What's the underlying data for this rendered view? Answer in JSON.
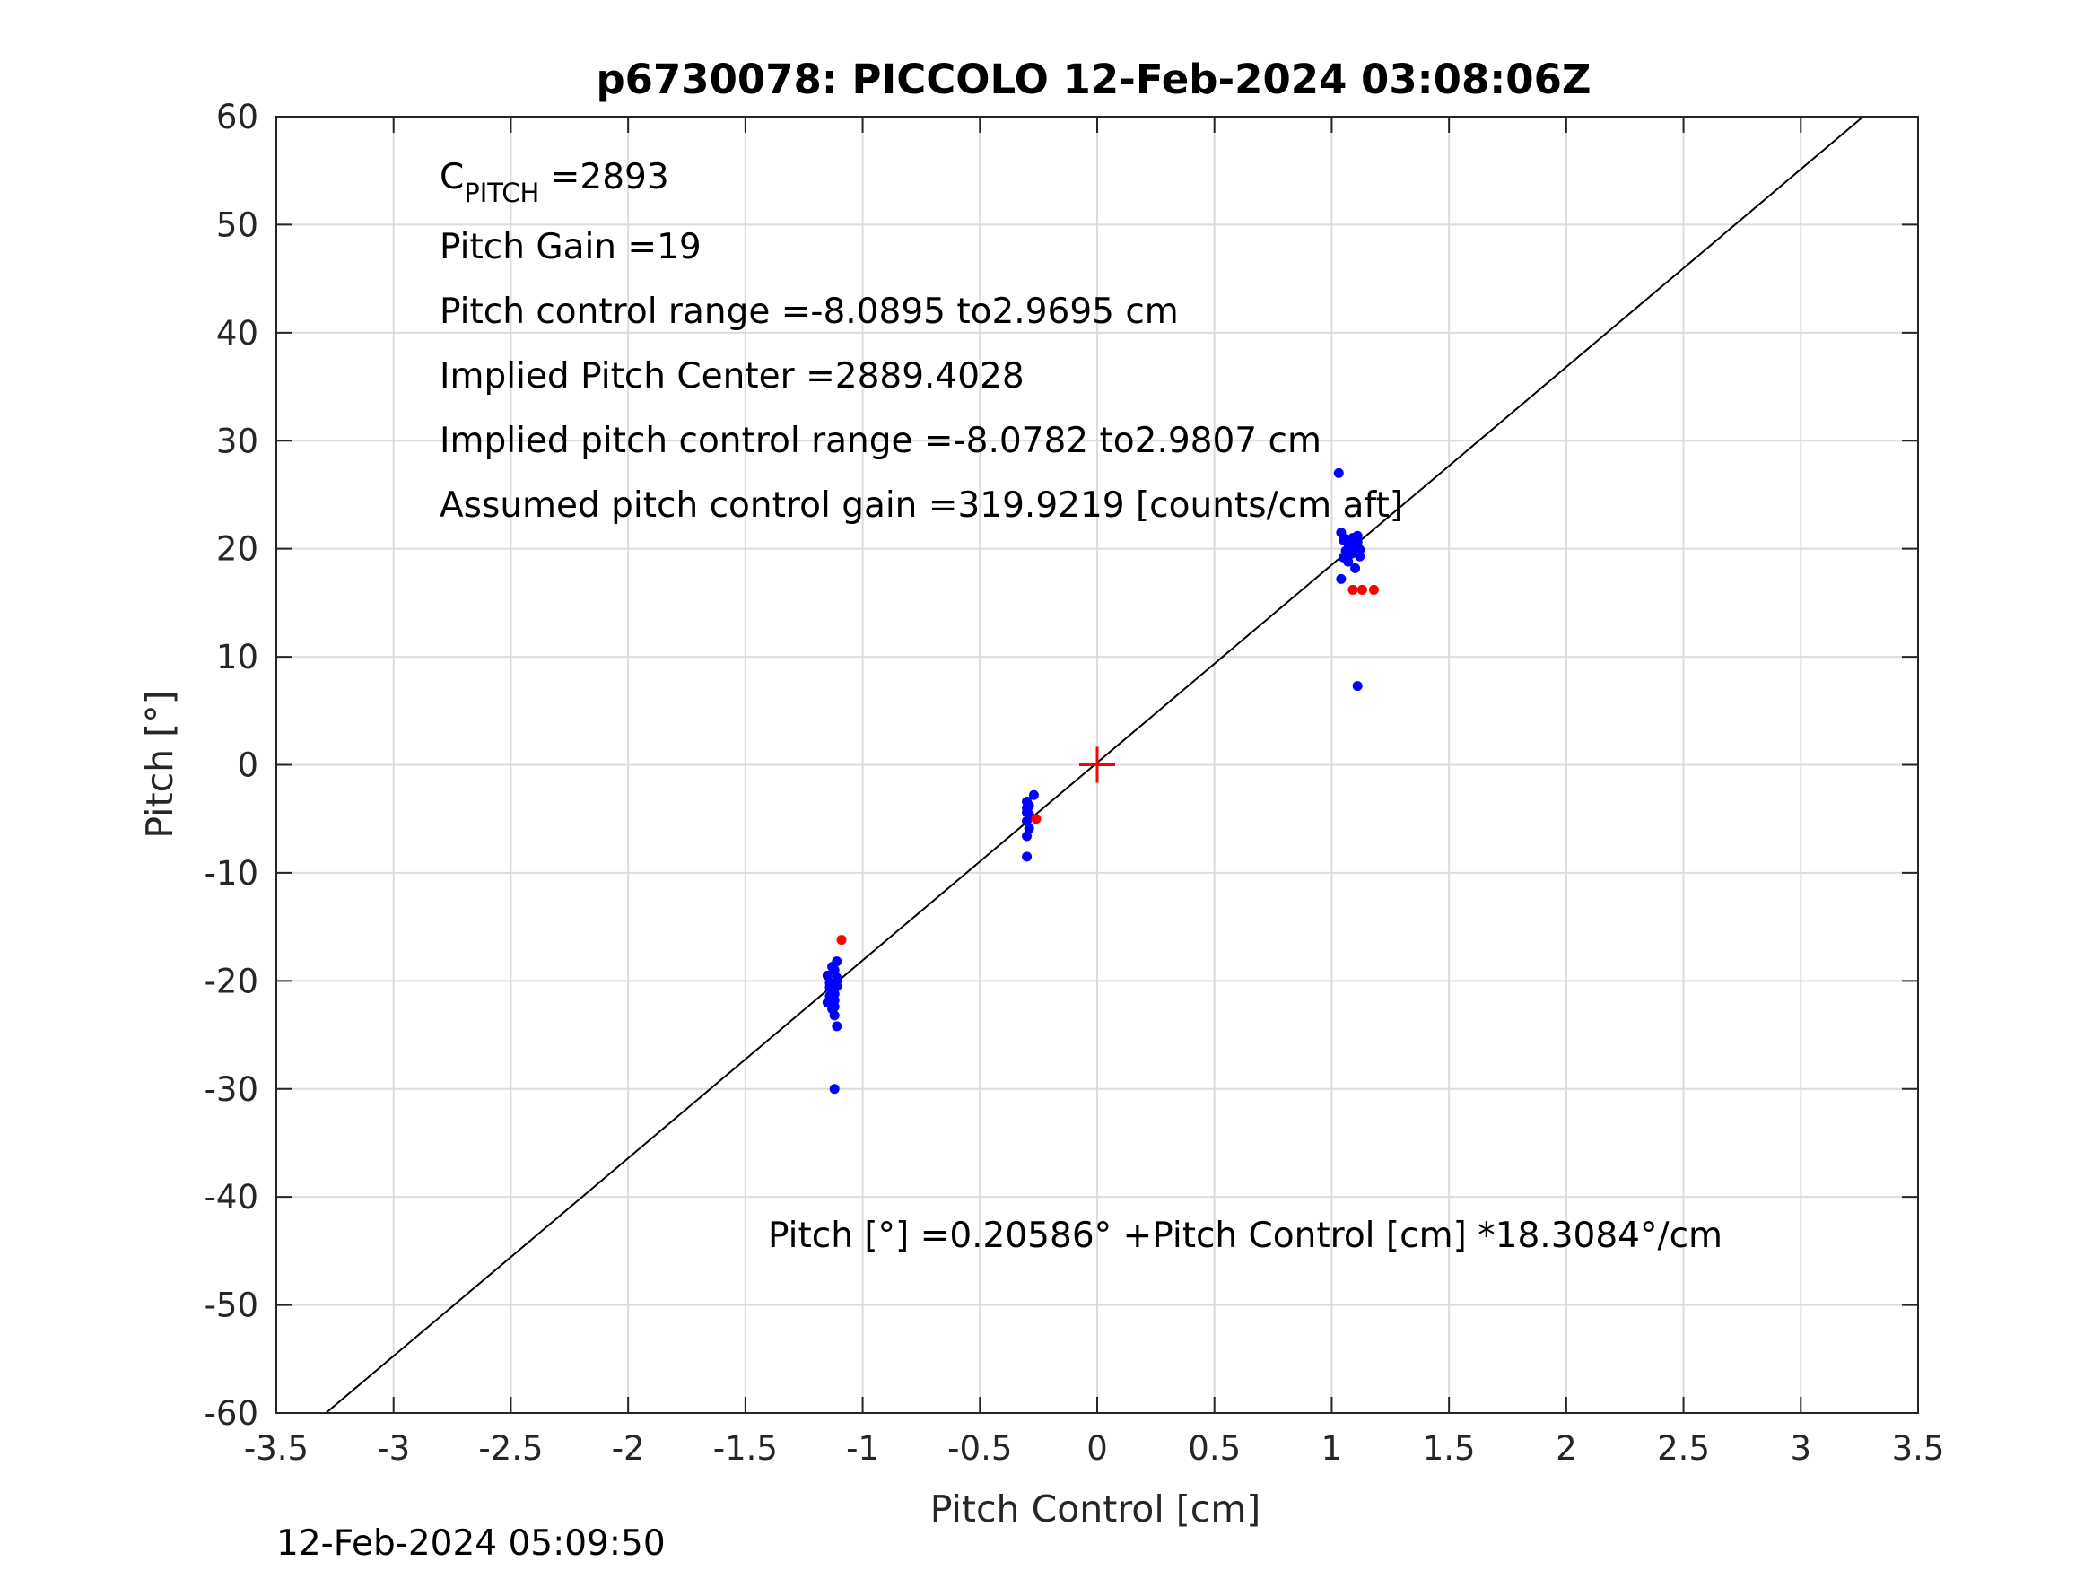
{
  "chart_data": {
    "type": "scatter",
    "title": "p6730078: PICCOLO 12-Feb-2024 03:08:06Z",
    "xlabel": "Pitch Control [cm]",
    "ylabel": "Pitch [°]",
    "xlim": [
      -3.5,
      3.5
    ],
    "ylim": [
      -60,
      60
    ],
    "x_ticks": [
      -3.5,
      -3,
      -2.5,
      -2,
      -1.5,
      -1,
      -0.5,
      0,
      0.5,
      1,
      1.5,
      2,
      2.5,
      3,
      3.5
    ],
    "x_tick_labels": [
      "-3.5",
      "-3",
      "-2.5",
      "-2",
      "-1.5",
      "-1",
      "-0.5",
      "0",
      "0.5",
      "1",
      "1.5",
      "2",
      "2.5",
      "3",
      "3.5"
    ],
    "y_ticks": [
      60,
      50,
      40,
      30,
      20,
      10,
      0,
      -10,
      -20,
      -30,
      -40,
      -50,
      -60
    ],
    "y_tick_labels": [
      "60",
      "50",
      "40",
      "30",
      "20",
      "10",
      "0",
      "-10",
      "-20",
      "-30",
      "-40",
      "-50",
      "-60"
    ],
    "grid": true,
    "fit_line": {
      "intercept": 0.20586,
      "slope": 18.3084,
      "color": "#000000"
    },
    "center_marker": {
      "x": 0,
      "y": 0,
      "color": "#ff0000"
    },
    "series": [
      {
        "color": "#0000ff",
        "points": [
          [
            -1.15,
            -19.5
          ],
          [
            -1.14,
            -20.2
          ],
          [
            -1.13,
            -21.0
          ],
          [
            -1.12,
            -21.8
          ],
          [
            -1.11,
            -20.5
          ],
          [
            -1.13,
            -22.6
          ],
          [
            -1.12,
            -19.0
          ],
          [
            -1.11,
            -18.2
          ],
          [
            -1.14,
            -21.4
          ],
          [
            -1.12,
            -23.2
          ],
          [
            -1.11,
            -24.2
          ],
          [
            -1.13,
            -20.8
          ],
          [
            -1.15,
            -22.0
          ],
          [
            -1.12,
            -22.4
          ],
          [
            -1.11,
            -19.7
          ],
          [
            -1.13,
            -18.7
          ],
          [
            -1.14,
            -20.6
          ],
          [
            -1.12,
            -21.2
          ],
          [
            -1.11,
            -20.0
          ],
          [
            -1.12,
            -30.0
          ],
          [
            -0.3,
            -3.4
          ],
          [
            -0.3,
            -4.0
          ],
          [
            -0.29,
            -4.6
          ],
          [
            -0.3,
            -5.2
          ],
          [
            -0.29,
            -5.9
          ],
          [
            -0.3,
            -6.6
          ],
          [
            -0.3,
            -8.5
          ],
          [
            -0.27,
            -2.8
          ],
          [
            -0.29,
            -3.8
          ],
          [
            -0.3,
            -4.4
          ],
          [
            1.03,
            27.0
          ],
          [
            1.04,
            21.5
          ],
          [
            1.05,
            20.8
          ],
          [
            1.06,
            19.8
          ],
          [
            1.07,
            20.5
          ],
          [
            1.08,
            19.5
          ],
          [
            1.09,
            21.0
          ],
          [
            1.1,
            20.0
          ],
          [
            1.11,
            20.6
          ],
          [
            1.12,
            19.9
          ],
          [
            1.05,
            19.2
          ],
          [
            1.07,
            18.8
          ],
          [
            1.11,
            21.2
          ],
          [
            1.04,
            17.2
          ],
          [
            1.1,
            18.2
          ],
          [
            1.12,
            19.3
          ],
          [
            1.06,
            20.9
          ],
          [
            1.08,
            20.3
          ],
          [
            1.09,
            19.6
          ],
          [
            1.11,
            7.3
          ]
        ]
      },
      {
        "color": "#ff0000",
        "points": [
          [
            -1.09,
            -16.2
          ],
          [
            -0.26,
            -5.0
          ],
          [
            1.09,
            16.2
          ],
          [
            1.13,
            16.2
          ],
          [
            1.18,
            16.2
          ]
        ]
      }
    ],
    "annotations": {
      "c_pitch_main": "C",
      "c_pitch_sub": "PITCH",
      "c_pitch_value": " =2893",
      "pitch_gain": "Pitch Gain =19",
      "pitch_control_range": "Pitch control range =-8.0895 to2.9695 cm",
      "implied_pitch_center": "Implied Pitch Center =2889.4028",
      "implied_pitch_control_range": "Implied pitch control range =-8.0782 to2.9807 cm",
      "assumed_pitch_control_gain": "Assumed pitch control gain =319.9219 [counts/cm aft]",
      "fit_equation": "Pitch [°] =0.20586° +Pitch Control [cm] *18.3084°/cm"
    },
    "footer_timestamp": "12-Feb-2024 05:09:50"
  }
}
